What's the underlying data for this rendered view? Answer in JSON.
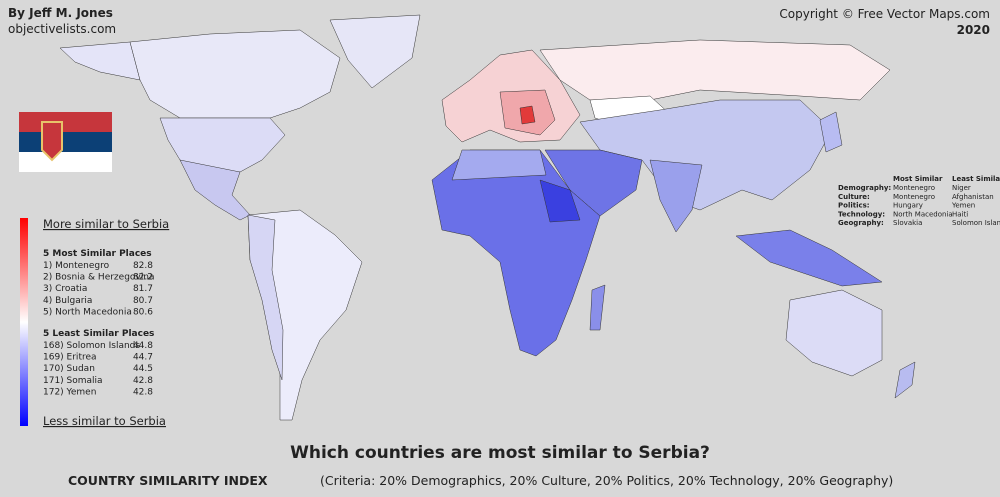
{
  "header": {
    "author": "By Jeff M. Jones",
    "site": "objectivelists.com",
    "copyright": "Copyright © Free Vector Maps.com",
    "year": "2020"
  },
  "legend": {
    "top_label": "More similar to Serbia",
    "bottom_label": "Less similar to Serbia",
    "most_title": "5 Most Similar Places",
    "most": [
      {
        "place": "1) Montenegro",
        "score": 82.8
      },
      {
        "place": "2) Bosnia & Herzegovina",
        "score": 82.2
      },
      {
        "place": "3) Croatia",
        "score": 81.7
      },
      {
        "place": "4) Bulgaria",
        "score": 80.7
      },
      {
        "place": "5) North Macedonia",
        "score": 80.6
      }
    ],
    "least_title": "5 Least Similar Places",
    "least": [
      {
        "place": "168) Solomon Islands",
        "score": 44.8
      },
      {
        "place": "169) Eritrea",
        "score": 44.7
      },
      {
        "place": "170) Sudan",
        "score": 44.5
      },
      {
        "place": "171) Somalia",
        "score": 42.8
      },
      {
        "place": "172) Yemen",
        "score": 42.8
      }
    ]
  },
  "categories": {
    "headers": [
      "Most Similar",
      "Least Similar"
    ],
    "rows": [
      {
        "category": "Demography:",
        "most": "Montenegro",
        "least": "Niger"
      },
      {
        "category": "Culture:",
        "most": "Montenegro",
        "least": "Afghanistan"
      },
      {
        "category": "Politics:",
        "most": "Hungary",
        "least": "Yemen"
      },
      {
        "category": "Technology:",
        "most": "North Macedonia",
        "least": "Haiti"
      },
      {
        "category": "Geography:",
        "most": "Slovakia",
        "least": "Solomon Islands"
      }
    ]
  },
  "title": "Which countries are most similar to Serbia?",
  "footer": {
    "index": "COUNTRY SIMILARITY INDEX",
    "criteria": "(Criteria: 20% Demographics, 20% Culture, 20% Politics, 20% Technology, 20% Geography)"
  }
}
